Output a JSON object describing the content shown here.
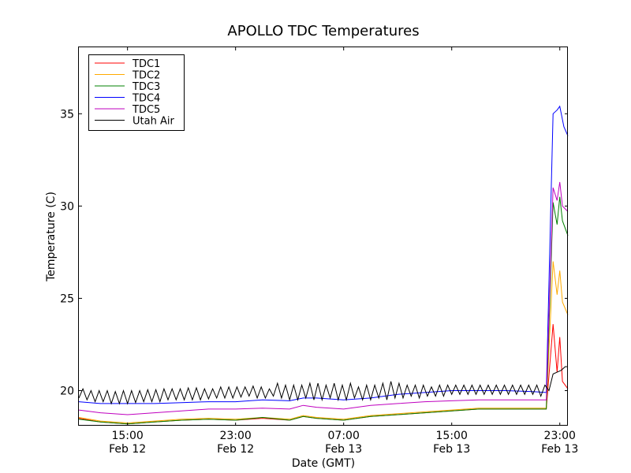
{
  "chart_data": {
    "type": "line",
    "title": "APOLLO TDC Temperatures",
    "xlabel": "Date (GMT)",
    "ylabel": "Temperature (C)",
    "x_unit": "hours since Feb 12 15:00 GMT",
    "xlim": [
      -3.6,
      32.6
    ],
    "ylim": [
      18.1,
      38.6
    ],
    "yticks": [
      20,
      25,
      30,
      35
    ],
    "xticks": [
      {
        "x": 0,
        "line1": "15:00",
        "line2": "Feb 12"
      },
      {
        "x": 8,
        "line1": "23:00",
        "line2": "Feb 12"
      },
      {
        "x": 16,
        "line1": "07:00",
        "line2": "Feb 13"
      },
      {
        "x": 24,
        "line1": "15:00",
        "line2": "Feb 13"
      },
      {
        "x": 32,
        "line1": "23:00",
        "line2": "Feb 13"
      }
    ],
    "legend_position": "top-left",
    "series": [
      {
        "name": "TDC1",
        "color": "#ff0000",
        "x": [
          -3.6,
          -2,
          0,
          2,
          4,
          6,
          8,
          10,
          12,
          13,
          14,
          16,
          18,
          20,
          22,
          24,
          26,
          28,
          30,
          31,
          31.5,
          31.8,
          32,
          32.2,
          32.6
        ],
        "y": [
          18.5,
          18.3,
          18.2,
          18.3,
          18.4,
          18.45,
          18.4,
          18.5,
          18.4,
          18.6,
          18.5,
          18.4,
          18.6,
          18.7,
          18.8,
          18.9,
          19.0,
          19.0,
          19.0,
          19.0,
          23.6,
          21.0,
          22.9,
          20.5,
          20.1
        ]
      },
      {
        "name": "TDC2",
        "color": "#ffaa00",
        "x": [
          -3.6,
          -2,
          0,
          2,
          4,
          6,
          8,
          10,
          12,
          13,
          14,
          16,
          18,
          20,
          22,
          24,
          26,
          28,
          30,
          31,
          31.5,
          31.8,
          32,
          32.2,
          32.6
        ],
        "y": [
          18.55,
          18.35,
          18.25,
          18.35,
          18.45,
          18.5,
          18.45,
          18.55,
          18.45,
          18.65,
          18.55,
          18.45,
          18.65,
          18.75,
          18.85,
          18.95,
          19.05,
          19.05,
          19.05,
          19.05,
          27.0,
          25.2,
          26.5,
          24.8,
          24.1
        ]
      },
      {
        "name": "TDC3",
        "color": "#008000",
        "x": [
          -3.6,
          -2,
          0,
          2,
          4,
          6,
          8,
          10,
          12,
          13,
          14,
          16,
          18,
          20,
          22,
          24,
          26,
          28,
          30,
          31,
          31.5,
          31.8,
          32,
          32.2,
          32.6
        ],
        "y": [
          18.45,
          18.3,
          18.2,
          18.3,
          18.4,
          18.45,
          18.4,
          18.55,
          18.4,
          18.6,
          18.5,
          18.4,
          18.6,
          18.7,
          18.8,
          18.9,
          19.0,
          19.0,
          19.0,
          19.0,
          30.2,
          29.0,
          30.5,
          29.2,
          28.4
        ]
      },
      {
        "name": "TDC4",
        "color": "#0000ff",
        "x": [
          -3.6,
          -2,
          0,
          2,
          4,
          6,
          8,
          10,
          12,
          13,
          14,
          16,
          18,
          20,
          22,
          24,
          26,
          28,
          30,
          31,
          31.5,
          31.8,
          32,
          32.3,
          32.6
        ],
        "y": [
          19.4,
          19.3,
          19.3,
          19.3,
          19.35,
          19.4,
          19.4,
          19.5,
          19.45,
          19.6,
          19.6,
          19.5,
          19.6,
          19.8,
          19.9,
          20.0,
          20.0,
          20.0,
          19.95,
          19.9,
          35.0,
          35.2,
          35.4,
          34.3,
          33.8
        ]
      },
      {
        "name": "TDC5",
        "color": "#bf00bf",
        "x": [
          -3.6,
          -2,
          0,
          2,
          4,
          6,
          8,
          10,
          12,
          13,
          14,
          16,
          18,
          20,
          22,
          24,
          26,
          28,
          30,
          31,
          31.5,
          31.8,
          32,
          32.2,
          32.6
        ],
        "y": [
          18.95,
          18.8,
          18.7,
          18.8,
          18.9,
          19.0,
          19.0,
          19.05,
          19.0,
          19.2,
          19.1,
          19.0,
          19.2,
          19.3,
          19.4,
          19.45,
          19.5,
          19.5,
          19.5,
          19.5,
          31.0,
          30.3,
          31.3,
          30.0,
          29.7
        ]
      },
      {
        "name": "Utah Air",
        "color": "#000000",
        "x": [
          -3.6,
          -3.3,
          -3,
          -2.7,
          -2.4,
          -2.1,
          -1.8,
          -1.5,
          -1.2,
          -0.9,
          -0.6,
          -0.3,
          0,
          0.3,
          0.6,
          0.9,
          1.2,
          1.5,
          1.8,
          2.1,
          2.4,
          2.7,
          3,
          3.3,
          3.6,
          3.9,
          4.2,
          4.5,
          4.8,
          5.1,
          5.4,
          5.7,
          6,
          6.3,
          6.6,
          6.9,
          7.2,
          7.5,
          7.8,
          8.1,
          8.4,
          8.7,
          9,
          9.3,
          9.6,
          9.9,
          10.2,
          10.5,
          10.8,
          11.1,
          11.4,
          11.7,
          12,
          12.3,
          12.6,
          12.9,
          13.2,
          13.5,
          13.8,
          14.1,
          14.4,
          14.7,
          15,
          15.3,
          15.6,
          15.9,
          16.2,
          16.5,
          16.8,
          17.1,
          17.4,
          17.7,
          18,
          18.3,
          18.6,
          18.9,
          19.2,
          19.5,
          19.8,
          20.1,
          20.4,
          20.7,
          21,
          21.3,
          21.6,
          21.9,
          22.2,
          22.5,
          22.8,
          23.1,
          23.4,
          23.7,
          24,
          24.3,
          24.6,
          24.9,
          25.2,
          25.5,
          25.8,
          26.1,
          26.4,
          26.7,
          27,
          27.3,
          27.6,
          27.9,
          28.2,
          28.5,
          28.8,
          29.1,
          29.4,
          29.7,
          30,
          30.3,
          30.6,
          30.9,
          31.2,
          31.5,
          31.8,
          32.1,
          32.4,
          32.6
        ],
        "y": [
          19.6,
          20.1,
          19.5,
          20.0,
          19.4,
          20.0,
          19.4,
          20.0,
          19.3,
          19.95,
          19.3,
          20.0,
          19.3,
          20.0,
          19.35,
          20.0,
          19.4,
          20.05,
          19.4,
          20.05,
          19.4,
          20.1,
          19.5,
          20.1,
          19.5,
          20.1,
          19.5,
          20.15,
          19.5,
          20.15,
          19.5,
          20.1,
          19.55,
          20.1,
          19.6,
          20.2,
          19.6,
          20.2,
          19.6,
          20.2,
          19.65,
          20.2,
          19.7,
          20.25,
          19.6,
          20.2,
          19.6,
          20.1,
          19.7,
          20.4,
          19.6,
          20.3,
          19.5,
          20.3,
          19.5,
          20.3,
          19.6,
          20.4,
          19.5,
          20.4,
          19.5,
          20.3,
          19.6,
          20.4,
          19.5,
          20.3,
          19.5,
          20.4,
          19.6,
          20.2,
          19.5,
          20.3,
          19.5,
          20.3,
          19.6,
          20.4,
          19.5,
          20.5,
          19.6,
          20.4,
          19.6,
          20.3,
          19.7,
          20.3,
          19.6,
          20.3,
          19.7,
          20.2,
          19.7,
          20.3,
          19.7,
          20.3,
          19.8,
          20.3,
          19.8,
          20.3,
          19.8,
          20.3,
          19.8,
          20.3,
          19.8,
          20.3,
          19.8,
          20.3,
          19.8,
          20.3,
          19.8,
          20.3,
          19.8,
          20.3,
          19.8,
          20.3,
          19.8,
          20.3,
          19.7,
          20.3,
          20.0,
          20.9,
          21.0,
          21.1,
          21.3,
          21.3
        ]
      }
    ]
  }
}
